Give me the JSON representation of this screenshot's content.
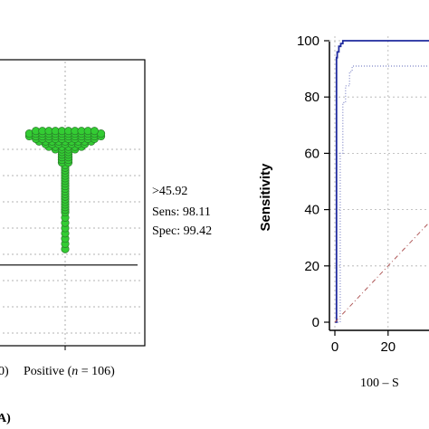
{
  "chart_data": [
    {
      "type": "scatter",
      "subtype": "dot-plot",
      "categories": [
        "0)",
        "Positive (n = 106)"
      ],
      "category_label_parts": [
        {
          "text": "0)"
        },
        {
          "prefix": "Positive (",
          "n": "n",
          "suffix": " = 106)"
        }
      ],
      "series": [
        {
          "category": "Positive (n = 106)",
          "count": 106,
          "color": "#33cc33",
          "values": [
            97,
            97,
            97,
            97,
            97,
            97,
            97,
            97,
            97,
            97,
            96,
            96,
            96,
            96,
            96,
            96,
            96,
            96,
            96,
            96,
            96,
            96,
            95,
            95,
            95,
            95,
            95,
            95,
            95,
            95,
            95,
            95,
            95,
            95,
            94,
            94,
            94,
            94,
            94,
            94,
            94,
            94,
            94,
            94,
            93,
            93,
            93,
            93,
            93,
            93,
            93,
            93,
            93,
            92,
            92,
            92,
            92,
            92,
            92,
            92,
            91,
            91,
            91,
            91,
            91,
            91,
            90,
            90,
            90,
            90,
            89,
            89,
            88,
            88,
            87,
            87,
            86,
            86,
            85,
            85,
            84,
            83,
            82,
            81,
            80,
            79,
            78,
            77,
            76,
            75,
            74,
            73,
            72,
            71,
            70,
            69,
            68,
            67,
            66,
            64,
            62,
            60,
            58,
            56,
            54,
            52
          ]
        }
      ],
      "cutoff": 45.92,
      "annotation": [
        ">45.92",
        "Sens: 98.11",
        "Spec: 99.42"
      ],
      "panel_label": "A)"
    },
    {
      "type": "line",
      "ylabel": "Sensitivity",
      "xlabel": "100 – S",
      "x_ticks": [
        "0",
        "20"
      ],
      "y_ticks": [
        "0",
        "20",
        "40",
        "60",
        "80",
        "100"
      ],
      "xlim": [
        0,
        100
      ],
      "ylim": [
        0,
        100
      ],
      "grid": true,
      "series": [
        {
          "style": "solid",
          "color": "#1f2a9e",
          "x": [
            0,
            0.6,
            0.6,
            0.9,
            0.9,
            1.5,
            1.5,
            2.2,
            2.2,
            3.0,
            3.0,
            100
          ],
          "y": [
            0,
            0,
            94,
            94,
            96,
            96,
            98,
            98,
            99,
            99,
            100,
            100
          ]
        },
        {
          "style": "dotted",
          "color": "#7f86c7",
          "x": [
            0,
            2,
            2,
            3,
            3,
            4,
            4,
            5.5,
            5.5,
            6.5,
            6.5,
            100
          ],
          "y": [
            0,
            0,
            60,
            60,
            78,
            78,
            84,
            84,
            89,
            89,
            91,
            91
          ]
        },
        {
          "style": "dash-dot",
          "color": "#b05a5a",
          "x": [
            0,
            100
          ],
          "y": [
            0,
            100
          ]
        }
      ]
    }
  ]
}
